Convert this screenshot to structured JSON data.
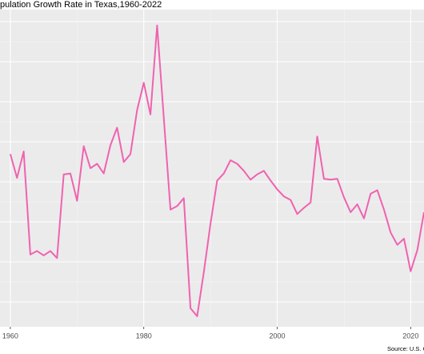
{
  "chart_data": {
    "type": "line",
    "title": "pulation Growth Rate in Texas,1960-2022",
    "caption": "Source: U.S. Cen",
    "x": [
      1960,
      1961,
      1962,
      1963,
      1964,
      1965,
      1966,
      1967,
      1968,
      1969,
      1970,
      1971,
      1972,
      1973,
      1974,
      1975,
      1976,
      1977,
      1978,
      1979,
      1980,
      1981,
      1982,
      1983,
      1984,
      1985,
      1986,
      1987,
      1988,
      1989,
      1990,
      1991,
      1992,
      1993,
      1994,
      1995,
      1996,
      1997,
      1998,
      1999,
      2000,
      2001,
      2002,
      2003,
      2004,
      2005,
      2006,
      2007,
      2008,
      2009,
      2010,
      2011,
      2012,
      2013,
      2014,
      2015,
      2016,
      2017,
      2018,
      2019,
      2020,
      2021,
      2022
    ],
    "series": [
      {
        "color": "#f062b0",
        "values": [
          2.14,
          1.87,
          2.17,
          1.0,
          1.04,
          0.99,
          1.04,
          0.96,
          1.91,
          1.92,
          1.61,
          2.23,
          1.98,
          2.03,
          1.92,
          2.24,
          2.44,
          2.05,
          2.14,
          2.64,
          2.95,
          2.59,
          3.6,
          2.55,
          1.51,
          1.55,
          1.64,
          0.39,
          0.3,
          0.8,
          1.35,
          1.84,
          1.92,
          2.07,
          2.03,
          1.95,
          1.85,
          1.91,
          1.95,
          1.84,
          1.74,
          1.66,
          1.62,
          1.46,
          1.53,
          1.59,
          2.34,
          1.86,
          1.85,
          1.86,
          1.65,
          1.48,
          1.57,
          1.41,
          1.69,
          1.73,
          1.51,
          1.25,
          1.11,
          1.18,
          0.81,
          1.05,
          1.48
        ]
      }
    ],
    "xlim": [
      1958.45,
      2022.0
    ],
    "ylim": [
      0.18,
      3.78
    ],
    "xticks": [
      1960,
      1980,
      2000,
      2020
    ],
    "grid": true
  }
}
